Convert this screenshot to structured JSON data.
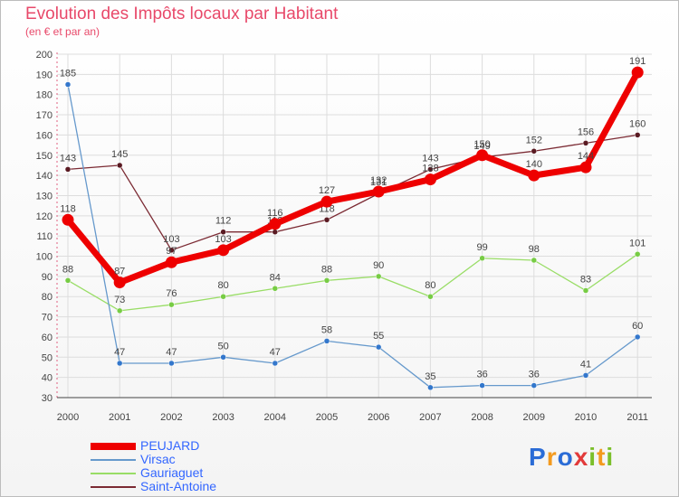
{
  "chart_data": {
    "type": "line",
    "title": "Evolution des Impôts locaux par Habitant",
    "subtitle": "(en € et par an)",
    "x": [
      "2000",
      "2001",
      "2002",
      "2003",
      "2004",
      "2005",
      "2006",
      "2007",
      "2008",
      "2009",
      "2010",
      "2011"
    ],
    "ylim": [
      30,
      200
    ],
    "yticks": [
      30,
      40,
      50,
      60,
      70,
      80,
      90,
      100,
      110,
      120,
      130,
      140,
      150,
      160,
      170,
      180,
      190,
      200
    ],
    "grid": true,
    "series": [
      {
        "name": "Saint-Antoine",
        "color": "#7b2a33",
        "dot": "#5a1a22",
        "values": [
          143,
          145,
          103,
          112,
          112,
          118,
          131,
          143,
          149,
          152,
          156,
          160
        ],
        "labels": [
          "143",
          "145",
          "103",
          "112",
          "112",
          "118",
          "131",
          "143",
          "149",
          "152",
          "156",
          "160"
        ]
      },
      {
        "name": "Gauriaguet",
        "color": "#99dd66",
        "dot": "#77cc44",
        "values": [
          88,
          73,
          76,
          80,
          84,
          88,
          90,
          80,
          99,
          98,
          83,
          101
        ],
        "labels": [
          "88",
          "73",
          "76",
          "80",
          "84",
          "88",
          "90",
          "80",
          "99",
          "98",
          "83",
          "101"
        ]
      },
      {
        "name": "Virsac",
        "color": "#6699cc",
        "dot": "#3377cc",
        "values": [
          185,
          47,
          47,
          50,
          47,
          58,
          55,
          35,
          36,
          36,
          41,
          60
        ],
        "labels": [
          "185",
          "47",
          "47",
          "50",
          "47",
          "58",
          "55",
          "35",
          "36",
          "36",
          "41",
          "60"
        ]
      },
      {
        "name": "PEUJARD",
        "color": "#ee0000",
        "dot": "#ee0000",
        "values": [
          118,
          87,
          97,
          103,
          116,
          127,
          132,
          138,
          150,
          140,
          144,
          191
        ],
        "labels": [
          "118",
          "87",
          "97",
          "103",
          "116",
          "127",
          "132",
          "138",
          "150",
          "140",
          "144",
          "191"
        ]
      }
    ]
  },
  "legend": [
    "PEUJARD",
    "Virsac",
    "Gauriaguet",
    "Saint-Antoine"
  ],
  "brand": {
    "letters": [
      "P",
      "r",
      "o",
      "x",
      "i",
      "t",
      "i"
    ]
  },
  "colors": {
    "title": "#e8496a",
    "legend_text": "#3366ff",
    "grid": "#dddddd"
  }
}
